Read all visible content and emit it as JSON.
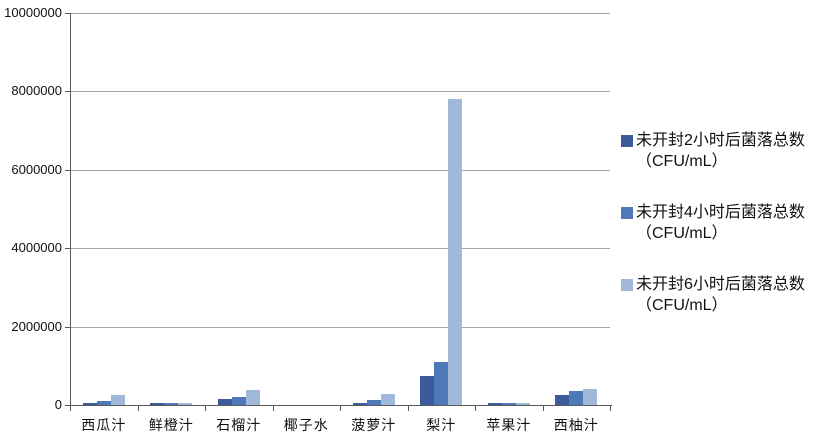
{
  "chart_data": {
    "type": "bar",
    "title": "",
    "xlabel": "",
    "ylabel": "",
    "categories": [
      "西瓜汁",
      "鲜橙汁",
      "石榴汁",
      "椰子水",
      "菠萝汁",
      "梨汁",
      "苹果汁",
      "西柚汁"
    ],
    "series": [
      {
        "name": "未开封2小时后菌落总数（CFU/mL）",
        "color": "#3b5b9b",
        "values": [
          50000,
          60000,
          150000,
          0,
          50000,
          750000,
          40000,
          250000
        ]
      },
      {
        "name": "未开封4小时后菌落总数（CFU/mL）",
        "color": "#4e79b9",
        "values": [
          100000,
          60000,
          200000,
          0,
          130000,
          1100000,
          40000,
          350000
        ]
      },
      {
        "name": "未开封6小时后菌落总数（CFU/mL）",
        "color": "#a2b8da",
        "values": [
          250000,
          60000,
          380000,
          0,
          280000,
          7800000,
          40000,
          400000
        ]
      }
    ],
    "ylim": [
      0,
      10000000
    ],
    "yticks": [
      0,
      2000000,
      4000000,
      6000000,
      8000000,
      10000000
    ],
    "ytick_labels": [
      "0",
      "2000000",
      "4000000",
      "6000000",
      "8000000",
      "10000000"
    ],
    "grid": true,
    "legend_position": "right"
  },
  "legend": {
    "items": [
      {
        "line1": "未开封2小时后菌落总数",
        "line2": "（CFU/mL）"
      },
      {
        "line1": "未开封4小时后菌落总数",
        "line2": "（CFU/mL）"
      },
      {
        "line1": "未开封6小时后菌落总数",
        "line2": "（CFU/mL）"
      }
    ]
  },
  "style": {
    "gridline_color": "#a6a6a6",
    "axis_color": "#595959",
    "text_color": "#111111",
    "background": "#ffffff"
  }
}
